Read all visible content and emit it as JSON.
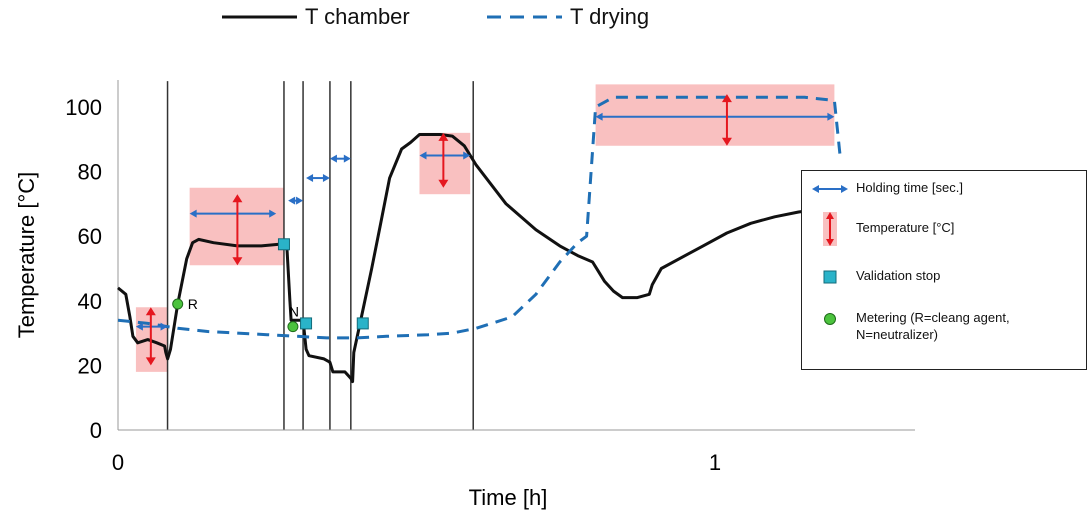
{
  "chart_data": {
    "type": "line",
    "title": "",
    "xlabel": "Time [h]",
    "ylabel": "Temperature [°C]",
    "xlim": [
      0,
      1.33
    ],
    "ylim": [
      0,
      105
    ],
    "x_ticks": [
      0,
      1
    ],
    "x_tick_labels": [
      "0",
      "1"
    ],
    "y_ticks": [
      0,
      20,
      40,
      60,
      80,
      100
    ],
    "y_tick_labels": [
      "0",
      "20",
      "40",
      "60",
      "80",
      "100"
    ],
    "grid": false,
    "legend_top": [
      "T chamber",
      "T drying"
    ],
    "series": [
      {
        "name": "T chamber",
        "style": "solid",
        "color": "#111111",
        "points": [
          [
            0,
            44
          ],
          [
            0.013,
            42
          ],
          [
            0.02,
            35
          ],
          [
            0.025,
            29
          ],
          [
            0.033,
            27
          ],
          [
            0.05,
            28
          ],
          [
            0.065,
            27
          ],
          [
            0.078,
            26
          ],
          [
            0.08,
            24
          ],
          [
            0.083,
            22
          ],
          [
            0.088,
            25
          ],
          [
            0.1,
            39
          ],
          [
            0.115,
            53
          ],
          [
            0.125,
            58
          ],
          [
            0.135,
            59
          ],
          [
            0.16,
            58
          ],
          [
            0.2,
            57
          ],
          [
            0.24,
            57
          ],
          [
            0.27,
            57.5
          ],
          [
            0.278,
            58
          ],
          [
            0.283,
            56
          ],
          [
            0.288,
            40
          ],
          [
            0.29,
            34
          ],
          [
            0.31,
            34
          ],
          [
            0.315,
            25
          ],
          [
            0.32,
            23
          ],
          [
            0.345,
            22
          ],
          [
            0.355,
            21
          ],
          [
            0.36,
            18
          ],
          [
            0.38,
            18
          ],
          [
            0.39,
            16
          ],
          [
            0.393,
            15
          ],
          [
            0.395,
            24
          ],
          [
            0.41,
            37
          ],
          [
            0.425,
            50
          ],
          [
            0.44,
            64
          ],
          [
            0.455,
            78
          ],
          [
            0.475,
            87
          ],
          [
            0.49,
            89
          ],
          [
            0.505,
            91.5
          ],
          [
            0.54,
            91.5
          ],
          [
            0.56,
            91
          ],
          [
            0.58,
            88
          ],
          [
            0.6,
            82
          ],
          [
            0.65,
            70
          ],
          [
            0.7,
            62
          ],
          [
            0.74,
            57
          ],
          [
            0.77,
            54
          ],
          [
            0.795,
            52
          ],
          [
            0.805,
            49
          ],
          [
            0.815,
            46
          ],
          [
            0.83,
            43
          ],
          [
            0.845,
            41
          ],
          [
            0.87,
            41
          ],
          [
            0.89,
            42
          ],
          [
            0.895,
            45
          ],
          [
            0.91,
            50
          ],
          [
            0.94,
            53
          ],
          [
            0.98,
            57
          ],
          [
            1.02,
            61
          ],
          [
            1.06,
            64
          ],
          [
            1.1,
            66
          ],
          [
            1.14,
            67.5
          ],
          [
            1.18,
            68.5
          ],
          [
            1.2,
            69
          ]
        ]
      },
      {
        "name": "T drying",
        "style": "dashed",
        "color": "#1f6fb5",
        "points": [
          [
            0,
            34
          ],
          [
            0.05,
            33
          ],
          [
            0.1,
            31.5
          ],
          [
            0.15,
            30.5
          ],
          [
            0.2,
            30
          ],
          [
            0.25,
            29.5
          ],
          [
            0.3,
            29
          ],
          [
            0.35,
            28.5
          ],
          [
            0.4,
            28.5
          ],
          [
            0.45,
            29
          ],
          [
            0.52,
            29.5
          ],
          [
            0.56,
            30
          ],
          [
            0.6,
            31.5
          ],
          [
            0.66,
            35
          ],
          [
            0.7,
            42
          ],
          [
            0.74,
            52
          ],
          [
            0.77,
            58
          ],
          [
            0.785,
            60
          ],
          [
            0.8,
            100
          ],
          [
            0.83,
            103
          ],
          [
            1.15,
            103
          ],
          [
            1.2,
            102
          ],
          [
            1.21,
            84
          ]
        ]
      }
    ],
    "vertical_lines_x": [
      0.083,
      0.278,
      0.31,
      0.355,
      0.39,
      0.595
    ],
    "annotations": {
      "holding_time": [
        [
          0.03,
          0.083,
          32
        ],
        [
          0.12,
          0.265,
          67
        ],
        [
          0.285,
          0.31,
          71
        ],
        [
          0.315,
          0.355,
          78
        ],
        [
          0.355,
          0.39,
          84
        ],
        [
          0.505,
          0.59,
          85
        ],
        [
          0.8,
          1.2,
          97
        ]
      ],
      "temperature_bands": [
        [
          0.03,
          0.083,
          18,
          38
        ],
        [
          0.12,
          0.278,
          51,
          75
        ],
        [
          0.505,
          0.59,
          73,
          92
        ],
        [
          0.8,
          1.2,
          88,
          107
        ]
      ],
      "temperature_arrows": [
        [
          0.055,
          20,
          38
        ],
        [
          0.2,
          51,
          73
        ],
        [
          0.545,
          75,
          92
        ],
        [
          1.02,
          88,
          104
        ]
      ],
      "validation_stops": [
        [
          0.278,
          57.5
        ],
        [
          0.315,
          33
        ],
        [
          0.41,
          33
        ]
      ],
      "metering": [
        {
          "x": 0.1,
          "y": 39,
          "label": "R"
        },
        {
          "x": 0.293,
          "y": 32,
          "label": "N"
        }
      ]
    }
  },
  "legend": {
    "holding_time": "Holding time [sec.]",
    "temperature": "Temperature [°C]",
    "validation_stop": "Validation stop",
    "metering": "Metering (R=cleang agent, N=neutralizer)"
  },
  "colors": {
    "band": "#f9c0c0",
    "arrow_red": "#e5171f",
    "arrow_blue": "#2a6fc6",
    "validation": "#2ab3c9",
    "metering": "#4cc33e"
  }
}
